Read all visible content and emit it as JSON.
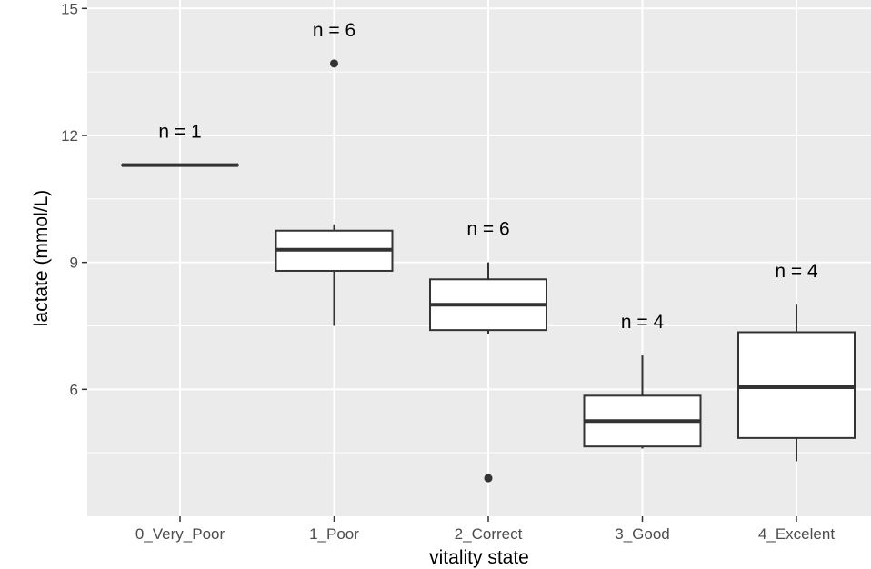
{
  "chart_data": {
    "type": "boxplot",
    "title": "",
    "xlabel": "vitality state",
    "ylabel": "lactate (mmol/L)",
    "ylim": [
      3.0,
      15.2
    ],
    "yticks": [
      6,
      9,
      12,
      15
    ],
    "grid": true,
    "categories": [
      "0_Very_Poor",
      "1_Poor",
      "2_Correct",
      "3_Good",
      "4_Excelent"
    ],
    "boxes": [
      {
        "category": "0_Very_Poor",
        "n_label": "n = 1",
        "min": 11.3,
        "q1": 11.3,
        "median": 11.3,
        "q3": 11.3,
        "max": 11.3,
        "outliers": []
      },
      {
        "category": "1_Poor",
        "n_label": "n = 6",
        "min": 7.5,
        "q1": 8.8,
        "median": 9.3,
        "q3": 9.75,
        "max": 9.9,
        "outliers": [
          13.7
        ]
      },
      {
        "category": "2_Correct",
        "n_label": "n = 6",
        "min": 7.3,
        "q1": 7.4,
        "median": 8.0,
        "q3": 8.6,
        "max": 9.0,
        "outliers": [
          3.9
        ]
      },
      {
        "category": "3_Good",
        "n_label": "n = 4",
        "min": 4.6,
        "q1": 4.65,
        "median": 5.25,
        "q3": 5.85,
        "max": 6.8,
        "outliers": []
      },
      {
        "category": "4_Excelent",
        "n_label": "n = 4",
        "min": 4.3,
        "q1": 4.85,
        "median": 6.05,
        "q3": 7.35,
        "max": 8.0,
        "outliers": []
      }
    ],
    "colors": {
      "panel": "#ebebeb",
      "grid": "#ffffff",
      "box_fill": "#ffffff",
      "box_line": "#333333",
      "tick_text": "#4d4d4d"
    }
  }
}
